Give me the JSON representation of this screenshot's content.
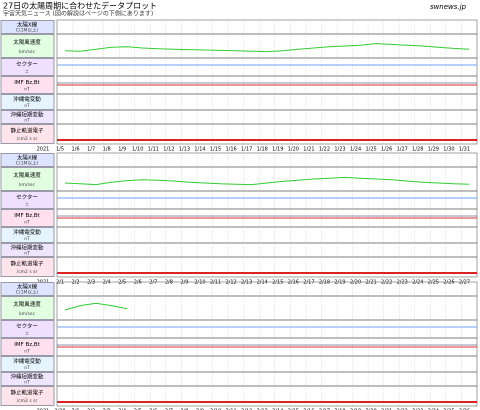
{
  "header": {
    "title": "27日の太陽周期に合わせたデータプロット",
    "subtitle": "宇宙天気ニュース (図の解説はページの下側にあります)",
    "logo": "swnews.jp"
  },
  "rows": [
    {
      "name": "太陽X線",
      "unit": "C(1M以上)"
    },
    {
      "name": "太陽風速度",
      "unit": "km/sec"
    },
    {
      "name": "セクター",
      "unit": "±"
    },
    {
      "name": "IMF Bz,Bt",
      "unit": "nT"
    },
    {
      "name": "沖縄電変動",
      "unit": "nT"
    },
    {
      "name": "沖縄短期変動",
      "unit": "nT"
    },
    {
      "name": "静止軌道電子",
      "unit": "/cm2 s sr"
    }
  ],
  "panels": [
    {
      "year": "2021",
      "dates": [
        "1/5",
        "1/6",
        "1/7",
        "1/8",
        "1/9",
        "1/10",
        "1/11",
        "1/12",
        "1/13",
        "1/14",
        "1/15",
        "1/16",
        "1/17",
        "1/18",
        "1/19",
        "1/20",
        "1/21",
        "1/22",
        "1/23",
        "1/24",
        "1/25",
        "1/26",
        "1/27",
        "1/28",
        "1/29",
        "1/30",
        "1/31"
      ],
      "wind": {
        "ylim": [
          200,
          800
        ],
        "values": [
          380,
          370,
          420,
          470,
          480,
          450,
          430,
          420,
          410,
          400,
          390,
          380,
          370,
          360,
          380,
          420,
          450,
          480,
          500,
          520,
          560,
          540,
          520,
          500,
          470,
          440,
          420
        ]
      }
    },
    {
      "year": "2021",
      "dates": [
        "2/1",
        "2/2",
        "2/3",
        "2/4",
        "2/5",
        "2/6",
        "2/7",
        "2/8",
        "2/9",
        "2/10",
        "2/11",
        "2/12",
        "2/13",
        "2/14",
        "2/15",
        "2/16",
        "2/17",
        "2/18",
        "2/19",
        "2/20",
        "2/21",
        "2/22",
        "2/23",
        "2/24",
        "2/25",
        "2/26",
        "2/27"
      ],
      "wind": {
        "ylim": [
          200,
          800
        ],
        "values": [
          400,
          380,
          360,
          420,
          460,
          480,
          470,
          450,
          420,
          400,
          380,
          370,
          360,
          400,
          440,
          470,
          500,
          520,
          540,
          520,
          500,
          480,
          450,
          420,
          400,
          380,
          370
        ]
      }
    },
    {
      "year": "2021",
      "dates": [
        "2/28",
        "3/1",
        "3/2",
        "3/3",
        "3/4",
        "3/5",
        "3/6",
        "3/7",
        "3/8",
        "3/9",
        "3/10",
        "3/11",
        "3/12",
        "3/13",
        "3/14",
        "3/15",
        "3/16",
        "3/17",
        "3/18",
        "3/19",
        "3/20",
        "3/21",
        "3/22",
        "3/23",
        "3/24",
        "3/25",
        "3/26"
      ],
      "wind": {
        "ylim": [
          200,
          800
        ],
        "values": [
          450,
          560,
          620,
          560,
          480,
          null,
          null,
          null,
          null,
          null,
          null,
          null,
          null,
          null,
          null,
          null,
          null,
          null,
          null,
          null,
          null,
          null,
          null,
          null,
          null,
          null,
          null
        ]
      }
    }
  ]
}
